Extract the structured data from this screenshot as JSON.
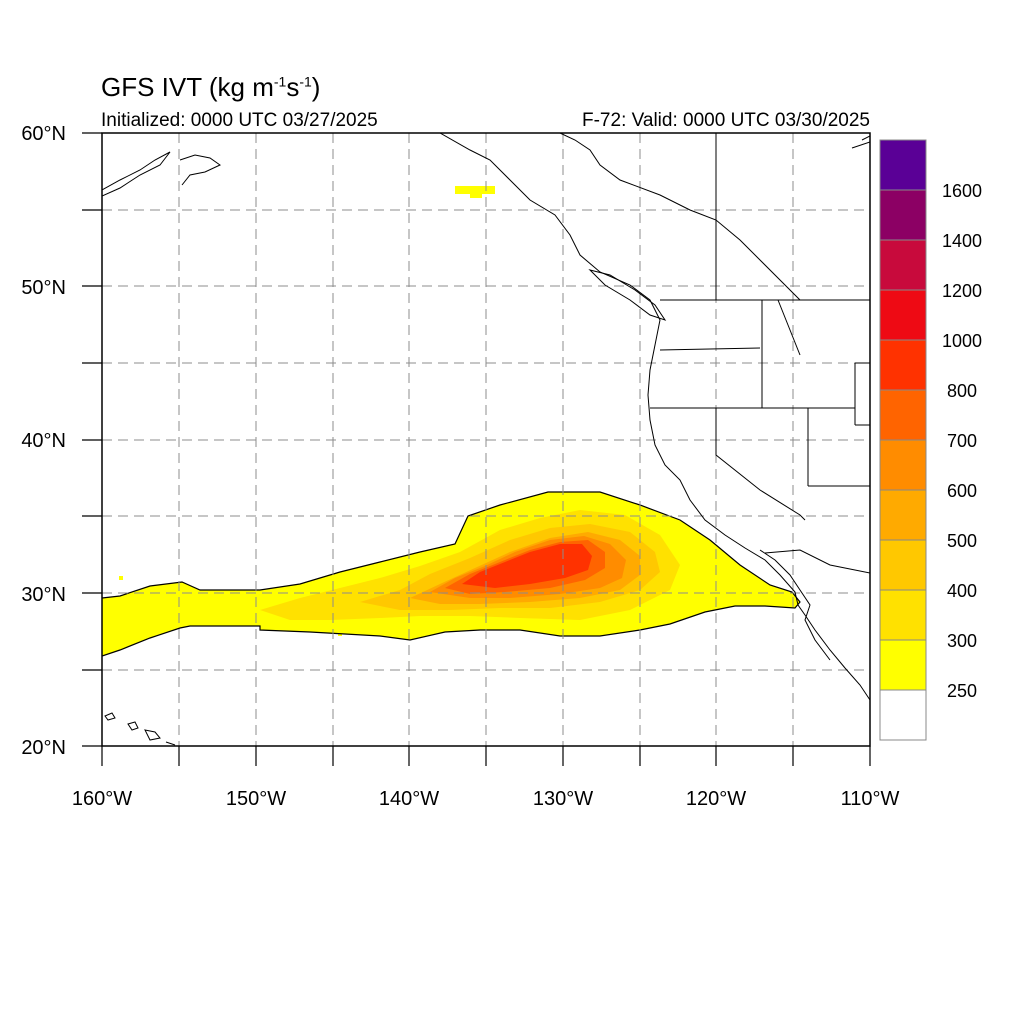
{
  "title": {
    "main": "GFS IVT (kg m",
    "exp1": "-1",
    "mid": "s",
    "exp2": "-1",
    "close": ")"
  },
  "initialized": "Initialized: 0000 UTC 03/27/2025",
  "valid": "F-72: Valid: 0000 UTC 03/30/2025",
  "lon_labels": [
    "160°W",
    "150°W",
    "140°W",
    "130°W",
    "120°W",
    "110°W"
  ],
  "lat_labels": [
    "60°N",
    "50°N",
    "40°N",
    "30°N",
    "20°N"
  ],
  "colorbar": {
    "levels": [
      "250",
      "300",
      "400",
      "500",
      "600",
      "700",
      "800",
      "1000",
      "1200",
      "1400",
      "1600"
    ],
    "colors": [
      "#ffffff",
      "#ffff00",
      "#ffe100",
      "#ffc800",
      "#ffaa00",
      "#ff8c00",
      "#ff6400",
      "#ff3200",
      "#ee0a14",
      "#c80a3c",
      "#8c0064",
      "#5a0096"
    ]
  },
  "ivt_max_color": "#ff3200",
  "grid_style": "dashed"
}
